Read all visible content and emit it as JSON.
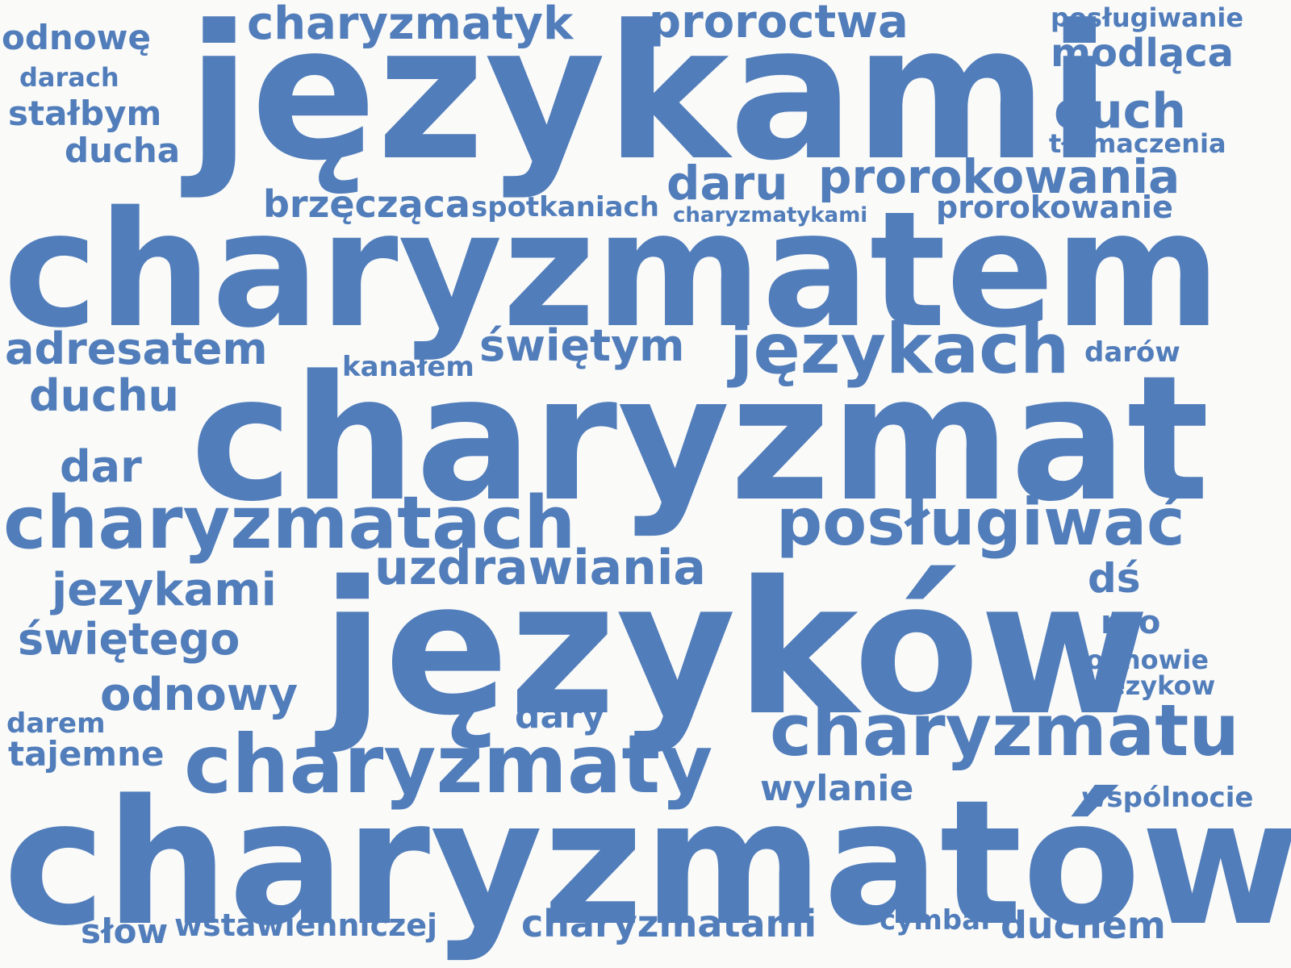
{
  "color": "#517dbb",
  "background": "#fafaf8",
  "words": [
    "językami",
    "charyzmatem",
    "charyzmat",
    "charyzmatów",
    "języków",
    "charyzmaty",
    "charyzmatach",
    "charyzmatu",
    "posługiwać",
    "językach",
    "proroctwa",
    "charyzmatyk",
    "prorokowania",
    "uzdrawiania",
    "modląca",
    "duch",
    "daru",
    "świętym",
    "adresatem",
    "duchu",
    "dar",
    "jezykami",
    "świętego",
    "odnowy",
    "odnowę",
    "stałbym",
    "ducha",
    "darach",
    "posługiwanie",
    "tłumaczenia",
    "brzęcząca",
    "spotkaniach",
    "charyzmatykami",
    "prorokowanie",
    "kanałem",
    "darów",
    "dś",
    "reo",
    "odnowie",
    "jezykow",
    "darem",
    "tajemne",
    "dary",
    "wylanie",
    "wspólnocie",
    "słów",
    "wstawienniczej",
    "charyzmatami",
    "cymbał",
    "duchem"
  ]
}
